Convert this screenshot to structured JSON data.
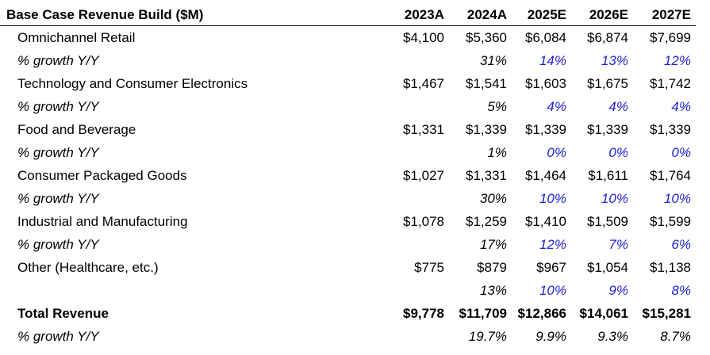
{
  "table": {
    "title": "Base Case Revenue Build ($M)",
    "years": [
      "2023A",
      "2024A",
      "2025E",
      "2026E",
      "2027E"
    ],
    "rows": [
      {
        "label": "Omnichannel Retail",
        "values": [
          "$4,100",
          "$5,360",
          "$6,084",
          "$6,874",
          "$7,699"
        ]
      },
      {
        "label": "% growth Y/Y",
        "values": [
          "",
          "31%",
          "14%",
          "13%",
          "12%"
        ]
      },
      {
        "label": "Technology and Consumer Electronics",
        "values": [
          "$1,467",
          "$1,541",
          "$1,603",
          "$1,675",
          "$1,742"
        ]
      },
      {
        "label": "% growth Y/Y",
        "values": [
          "",
          "5%",
          "4%",
          "4%",
          "4%"
        ]
      },
      {
        "label": "Food and Beverage",
        "values": [
          "$1,331",
          "$1,339",
          "$1,339",
          "$1,339",
          "$1,339"
        ]
      },
      {
        "label": "% growth Y/Y",
        "values": [
          "",
          "1%",
          "0%",
          "0%",
          "0%"
        ]
      },
      {
        "label": "Consumer Packaged Goods",
        "values": [
          "$1,027",
          "$1,331",
          "$1,464",
          "$1,611",
          "$1,764"
        ]
      },
      {
        "label": "% growth Y/Y",
        "values": [
          "",
          "30%",
          "10%",
          "10%",
          "10%"
        ]
      },
      {
        "label": "Industrial and Manufacturing",
        "values": [
          "$1,078",
          "$1,259",
          "$1,410",
          "$1,509",
          "$1,599"
        ]
      },
      {
        "label": "% growth Y/Y",
        "values": [
          "",
          "17%",
          "12%",
          "7%",
          "6%"
        ]
      },
      {
        "label": "Other (Healthcare, etc.)",
        "values": [
          "$775",
          "$879",
          "$967",
          "$1,054",
          "$1,138"
        ]
      },
      {
        "label": "",
        "values": [
          "",
          "13%",
          "10%",
          "9%",
          "8%"
        ]
      },
      {
        "label": "Total Revenue",
        "values": [
          "$9,778",
          "$11,709",
          "$12,866",
          "$14,061",
          "$15,281"
        ]
      },
      {
        "label": "% growth Y/Y",
        "values": [
          "",
          "19.7%",
          "9.9%",
          "9.3%",
          "8.7%"
        ]
      }
    ]
  },
  "colors": {
    "projection_input": "#1f1fd0",
    "text": "#000000"
  }
}
